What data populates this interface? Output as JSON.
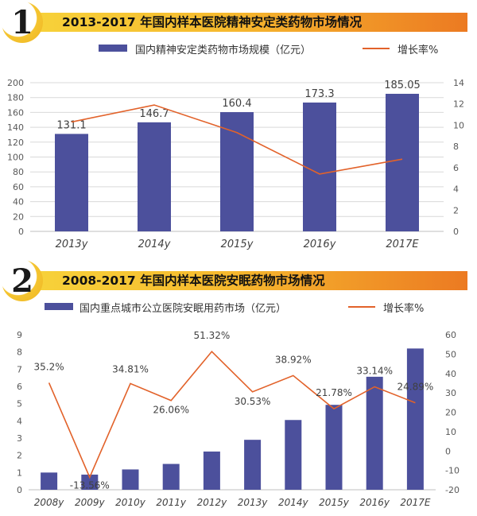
{
  "chart_data": [
    {
      "type": "bar",
      "badge": "1",
      "title": "2013-2017 年国内样本医院精神安定类药物市场情况",
      "categories": [
        "2013y",
        "2014y",
        "2015y",
        "2016y",
        "2017E"
      ],
      "series": [
        {
          "name": "国内精神安定类药物市场规模（亿元）",
          "type": "bar",
          "axis": "left",
          "values": [
            131.1,
            146.7,
            160.4,
            173.3,
            185.05
          ],
          "labels": [
            "131.1",
            "146.7",
            "160.4",
            "173.3",
            "185.05"
          ]
        },
        {
          "name": "增长率%",
          "type": "line",
          "axis": "right",
          "values": [
            10.3,
            11.9,
            9.3,
            5.4,
            6.8
          ]
        }
      ],
      "ylim_left": [
        0,
        200
      ],
      "yticks_left": [
        0,
        20,
        40,
        60,
        80,
        100,
        120,
        140,
        160,
        180,
        200
      ],
      "ylim_right": [
        0,
        14
      ],
      "yticks_right": [
        0,
        2,
        4,
        6,
        8,
        10,
        12,
        14
      ],
      "grid": true,
      "legend_position": "top",
      "colors": {
        "bar": "#4c509c",
        "line": "#e2622a"
      }
    },
    {
      "type": "bar",
      "badge": "2",
      "title": "2008-2017 年国内样本医院安眠药物市场情况",
      "categories": [
        "2008y",
        "2009y",
        "2010y",
        "2011y",
        "2012y",
        "2013y",
        "2014y",
        "2015y",
        "2016y",
        "2017E"
      ],
      "series": [
        {
          "name": "国内重点城市公立医院安眠用药市场（亿元）",
          "type": "bar",
          "axis": "left",
          "values": [
            1.0,
            0.88,
            1.18,
            1.5,
            2.22,
            2.9,
            4.05,
            4.93,
            6.56,
            8.2
          ]
        },
        {
          "name": "增长率%",
          "type": "line",
          "axis": "right",
          "values": [
            35.2,
            -13.56,
            34.81,
            26.06,
            51.32,
            30.53,
            38.92,
            21.78,
            33.14,
            24.89
          ],
          "labels": [
            "35.2%",
            "-13.56%",
            "34.81%",
            "26.06%",
            "51.32%",
            "30.53%",
            "38.92%",
            "21.78%",
            "33.14%",
            "24.89%"
          ]
        }
      ],
      "ylim_left": [
        0,
        9
      ],
      "yticks_left": [
        0,
        1,
        2,
        3,
        4,
        5,
        6,
        7,
        8,
        9
      ],
      "ylim_right": [
        -20,
        60
      ],
      "yticks_right": [
        -20,
        -10,
        0,
        10,
        20,
        30,
        40,
        50,
        60
      ],
      "grid": false,
      "legend_position": "top",
      "colors": {
        "bar": "#4c509c",
        "line": "#e2622a"
      }
    }
  ]
}
